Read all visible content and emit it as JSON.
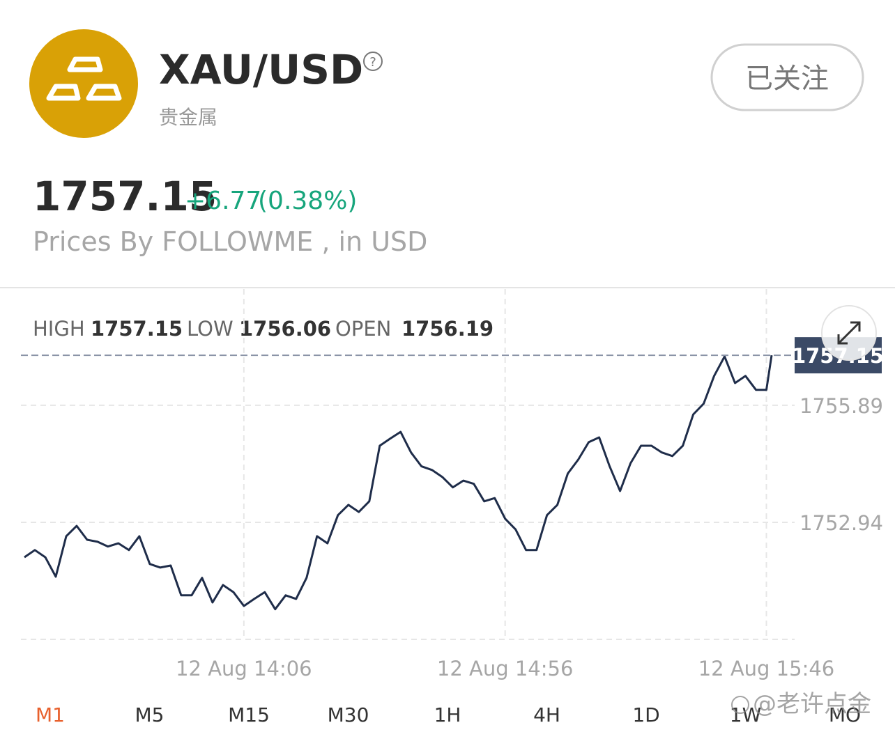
{
  "header": {
    "symbol": "XAU/USD",
    "category": "贵金属",
    "follow_button": "已关注"
  },
  "quote": {
    "price": 1757.15,
    "change": "+6.77",
    "change_percent": "(0.38%)",
    "source": "Prices By FOLLOWME , in USD"
  },
  "stats": [
    {
      "label": "HIGH",
      "value": 1757.15
    },
    {
      "label": "LOW",
      "value": 1756.06
    },
    {
      "label": "OPEN",
      "value": 1756.19
    }
  ],
  "chart_data": {
    "type": "line",
    "color": "#1f2d4a",
    "grid": true,
    "x": [
      "12 Aug 13:24",
      "12 Aug 13:26",
      "12 Aug 13:28",
      "12 Aug 13:30",
      "12 Aug 13:32",
      "12 Aug 13:34",
      "12 Aug 13:36",
      "12 Aug 13:38",
      "12 Aug 13:40",
      "12 Aug 13:42",
      "12 Aug 13:44",
      "12 Aug 13:46",
      "12 Aug 13:48",
      "12 Aug 13:50",
      "12 Aug 13:52",
      "12 Aug 13:54",
      "12 Aug 13:56",
      "12 Aug 13:58",
      "12 Aug 14:00",
      "12 Aug 14:02",
      "12 Aug 14:04",
      "12 Aug 14:06",
      "12 Aug 14:08",
      "12 Aug 14:10",
      "12 Aug 14:12",
      "12 Aug 14:14",
      "12 Aug 14:16",
      "12 Aug 14:18",
      "12 Aug 14:20",
      "12 Aug 14:22",
      "12 Aug 14:24",
      "12 Aug 14:26",
      "12 Aug 14:28",
      "12 Aug 14:30",
      "12 Aug 14:32",
      "12 Aug 14:34",
      "12 Aug 14:36",
      "12 Aug 14:38",
      "12 Aug 14:40",
      "12 Aug 14:42",
      "12 Aug 14:44",
      "12 Aug 14:46",
      "12 Aug 14:48",
      "12 Aug 14:50",
      "12 Aug 14:52",
      "12 Aug 14:54",
      "12 Aug 14:56",
      "12 Aug 14:58",
      "12 Aug 15:00",
      "12 Aug 15:02",
      "12 Aug 15:04",
      "12 Aug 15:06",
      "12 Aug 15:08",
      "12 Aug 15:10",
      "12 Aug 15:12",
      "12 Aug 15:14",
      "12 Aug 15:16",
      "12 Aug 15:18",
      "12 Aug 15:20",
      "12 Aug 15:22",
      "12 Aug 15:24",
      "12 Aug 15:26",
      "12 Aug 15:28",
      "12 Aug 15:30",
      "12 Aug 15:32",
      "12 Aug 15:34",
      "12 Aug 15:36",
      "12 Aug 15:38",
      "12 Aug 15:40",
      "12 Aug 15:42",
      "12 Aug 15:44",
      "12 Aug 15:46",
      "12 Aug 15:47"
    ],
    "values": [
      1752.06,
      1752.24,
      1752.06,
      1751.57,
      1752.59,
      1752.85,
      1752.5,
      1752.45,
      1752.33,
      1752.41,
      1752.24,
      1752.59,
      1751.89,
      1751.8,
      1751.85,
      1751.1,
      1751.1,
      1751.54,
      1750.92,
      1751.36,
      1751.18,
      1750.83,
      1751.01,
      1751.18,
      1750.75,
      1751.1,
      1751.01,
      1751.54,
      1752.59,
      1752.41,
      1753.12,
      1753.38,
      1753.2,
      1753.47,
      1754.87,
      1755.05,
      1755.22,
      1754.7,
      1754.35,
      1754.26,
      1754.08,
      1753.82,
      1753.99,
      1753.91,
      1753.47,
      1753.55,
      1753.03,
      1752.76,
      1752.24,
      1752.24,
      1753.12,
      1753.38,
      1754.17,
      1754.52,
      1754.96,
      1755.08,
      1754.35,
      1753.73,
      1754.43,
      1754.87,
      1754.87,
      1754.7,
      1754.61,
      1754.87,
      1755.66,
      1755.93,
      1756.63,
      1757.12,
      1756.45,
      1756.63,
      1756.28,
      1756.28,
      1757.15
    ],
    "xticks": [
      "12 Aug 14:06",
      "12 Aug 14:56",
      "12 Aug 15:46"
    ],
    "ylim": [
      1749.99,
      1758.82
    ],
    "yticks": [
      1752.94,
      1755.89
    ]
  },
  "timeframes": [
    "M1",
    "M5",
    "M15",
    "M30",
    "1H",
    "4H",
    "1D",
    "1W",
    "MO"
  ],
  "active_timeframe": 0,
  "watermark": "@老许点金"
}
